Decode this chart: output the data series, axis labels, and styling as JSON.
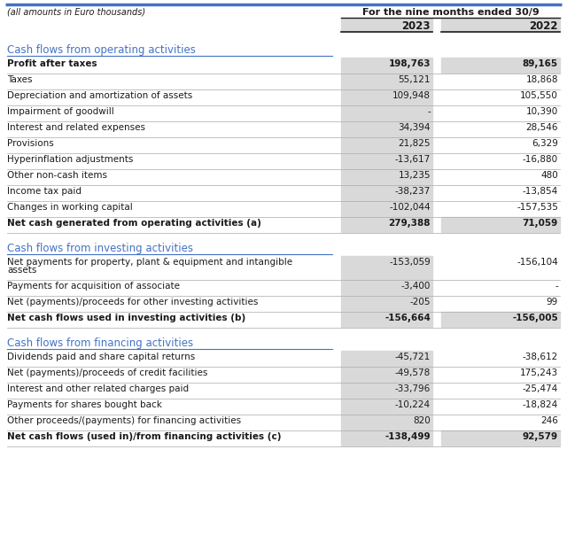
{
  "subtitle": "(all amounts in Euro thousands)",
  "header_text": "For the nine months ended 30/9",
  "col2023": "2023",
  "col2022": "2022",
  "blue": "#4472c4",
  "shaded": "#d9d9d9",
  "text_color": "#1a1a1a",
  "line_color": "#aaaaaa",
  "dark_line": "#333333",
  "sections": [
    {
      "title": "Cash flows from operating activities",
      "rows": [
        {
          "label": "Profit after taxes",
          "v2023": "198,763",
          "v2022": "89,165",
          "bold": true,
          "shade2023": true,
          "shade2022": true
        },
        {
          "label": "Taxes",
          "v2023": "55,121",
          "v2022": "18,868",
          "bold": false,
          "shade2023": true,
          "shade2022": false
        },
        {
          "label": "Depreciation and amortization of assets",
          "v2023": "109,948",
          "v2022": "105,550",
          "bold": false,
          "shade2023": true,
          "shade2022": false
        },
        {
          "label": "Impairment of goodwill",
          "v2023": "-",
          "v2022": "10,390",
          "bold": false,
          "shade2023": true,
          "shade2022": false
        },
        {
          "label": "Interest and related expenses",
          "v2023": "34,394",
          "v2022": "28,546",
          "bold": false,
          "shade2023": true,
          "shade2022": false
        },
        {
          "label": "Provisions",
          "v2023": "21,825",
          "v2022": "6,329",
          "bold": false,
          "shade2023": true,
          "shade2022": false
        },
        {
          "label": "Hyperinflation adjustments",
          "v2023": "-13,617",
          "v2022": "-16,880",
          "bold": false,
          "shade2023": true,
          "shade2022": false
        },
        {
          "label": "Other non-cash items",
          "v2023": "13,235",
          "v2022": "480",
          "bold": false,
          "shade2023": true,
          "shade2022": false
        },
        {
          "label": "Income tax paid",
          "v2023": "-38,237",
          "v2022": "-13,854",
          "bold": false,
          "shade2023": true,
          "shade2022": false
        },
        {
          "label": "Changes in working capital",
          "v2023": "-102,044",
          "v2022": "-157,535",
          "bold": false,
          "shade2023": true,
          "shade2022": false
        },
        {
          "label": "Net cash generated from operating activities (a)",
          "v2023": "279,388",
          "v2022": "71,059",
          "bold": true,
          "shade2023": true,
          "shade2022": true
        }
      ]
    },
    {
      "title": "Cash flows from investing activities",
      "rows": [
        {
          "label": "Net payments for property, plant & equipment and intangible assets",
          "v2023": "-153,059",
          "v2022": "-156,104",
          "bold": false,
          "shade2023": true,
          "shade2022": false,
          "multiline": true
        },
        {
          "label": "Payments for acquisition of associate",
          "v2023": "-3,400",
          "v2022": "-",
          "bold": false,
          "shade2023": true,
          "shade2022": false
        },
        {
          "label": "Net (payments)/proceeds for other investing activities",
          "v2023": "-205",
          "v2022": "99",
          "bold": false,
          "shade2023": true,
          "shade2022": false
        },
        {
          "label": "Net cash flows used in investing activities (b)",
          "v2023": "-156,664",
          "v2022": "-156,005",
          "bold": true,
          "shade2023": true,
          "shade2022": true
        }
      ]
    },
    {
      "title": "Cash flows from financing activities",
      "rows": [
        {
          "label": "Dividends paid and share capital returns",
          "v2023": "-45,721",
          "v2022": "-38,612",
          "bold": false,
          "shade2023": true,
          "shade2022": false
        },
        {
          "label": "Net (payments)/proceeds of credit facilities",
          "v2023": "-49,578",
          "v2022": "175,243",
          "bold": false,
          "shade2023": true,
          "shade2022": false
        },
        {
          "label": "Interest and other related charges paid",
          "v2023": "-33,796",
          "v2022": "-25,474",
          "bold": false,
          "shade2023": true,
          "shade2022": false
        },
        {
          "label": "Payments for shares bought back",
          "v2023": "-10,224",
          "v2022": "-18,824",
          "bold": false,
          "shade2023": true,
          "shade2022": false
        },
        {
          "label": "Other proceeds/(payments) for financing activities",
          "v2023": "820",
          "v2022": "246",
          "bold": false,
          "shade2023": true,
          "shade2022": false
        },
        {
          "label": "Net cash flows (used in)/from financing activities (c)",
          "v2023": "-138,499",
          "v2022": "92,579",
          "bold": true,
          "shade2023": true,
          "shade2022": true
        }
      ]
    }
  ]
}
